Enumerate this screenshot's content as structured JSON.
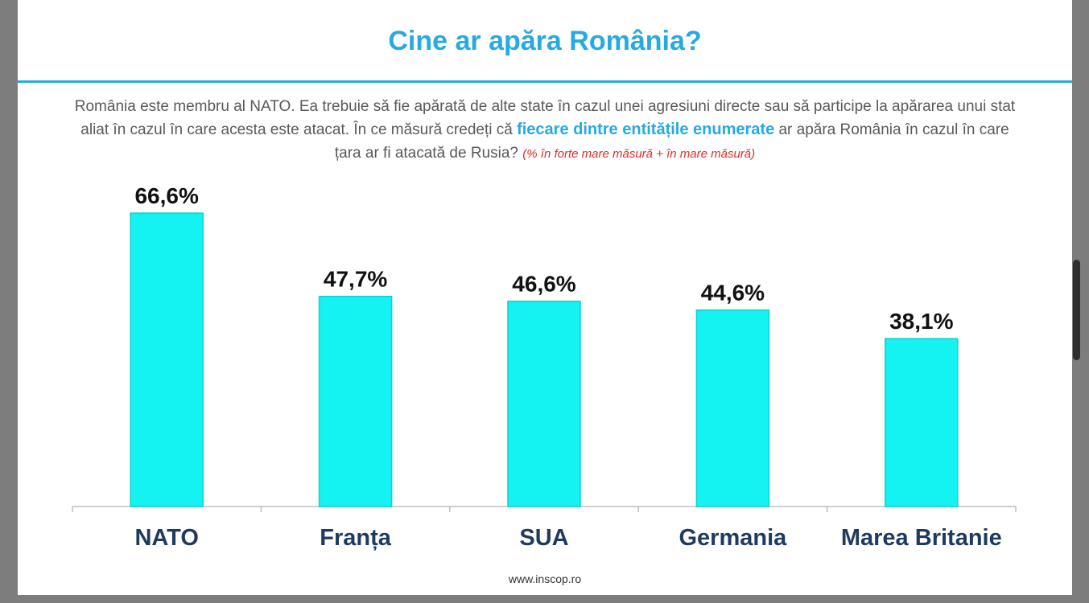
{
  "title": "Cine ar apăra România?",
  "question": {
    "part1": "România este membru al NATO. Ea trebuie să fie apărată de alte state în cazul unei agresiuni directe sau să participe la apărarea unui stat aliat în cazul în care acesta este atacat. În ce măsură credeți că ",
    "highlight": "fiecare dintre entitățile enumerate",
    "part2": " ar apăra România în cazul în care țara ar fi atacată de Rusia? ",
    "note": "(% în forte mare măsură + în mare măsură)"
  },
  "footer": "www.inscop.ro",
  "colors": {
    "bar": "#14f2f2",
    "bar_edge": "#0fd0d0",
    "title": "#27a9e1",
    "label": "#1f3a5f",
    "value": "#111111"
  },
  "chart_data": {
    "type": "bar",
    "categories": [
      "NATO",
      "Franța",
      "SUA",
      "Germania",
      "Marea Britanie"
    ],
    "values": [
      66.6,
      47.7,
      46.6,
      44.6,
      38.1
    ],
    "value_labels": [
      "66,6%",
      "47,7%",
      "46,6%",
      "44,6%",
      "38,1%"
    ],
    "ylim": [
      0,
      75
    ],
    "grid": false,
    "legend": "none"
  }
}
